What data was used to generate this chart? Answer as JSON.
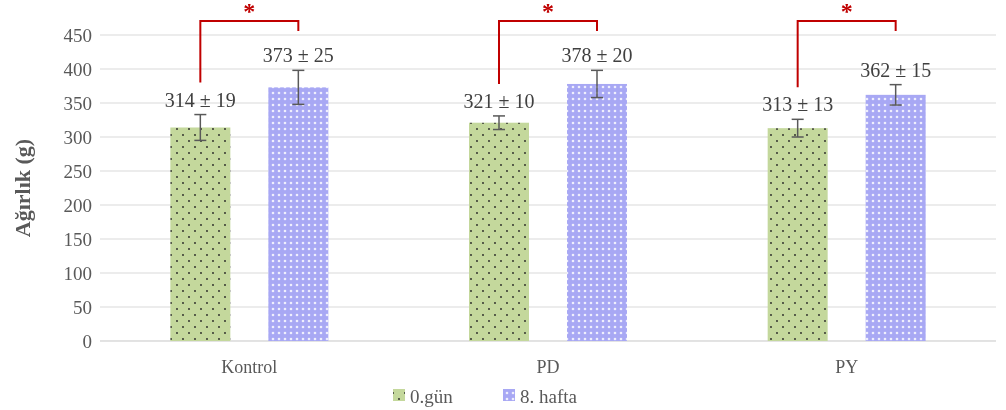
{
  "chart_data": {
    "type": "bar",
    "ylabel": "Ağırlık (g)",
    "categories": [
      "Kontrol",
      "PD",
      "PY"
    ],
    "series": [
      {
        "name": "0.gün",
        "color": "#c4d89c",
        "values": [
          314,
          321,
          313
        ],
        "errors": [
          19,
          10,
          13
        ],
        "value_labels": [
          "314 ± 19",
          "321 ± 10",
          "313 ± 13"
        ]
      },
      {
        "name": "8. hafta",
        "color": "#a8a8f4",
        "values": [
          373,
          378,
          362
        ],
        "errors": [
          25,
          20,
          15
        ],
        "value_labels": [
          "373 ± 25",
          "378 ± 20",
          "362 ± 15"
        ]
      }
    ],
    "ylim": [
      0,
      450
    ],
    "yticks": [
      0,
      50,
      100,
      150,
      200,
      250,
      300,
      350,
      400,
      450
    ],
    "grid": "y",
    "legend": "bottom",
    "annotations": [
      "*",
      "*",
      "*"
    ]
  }
}
